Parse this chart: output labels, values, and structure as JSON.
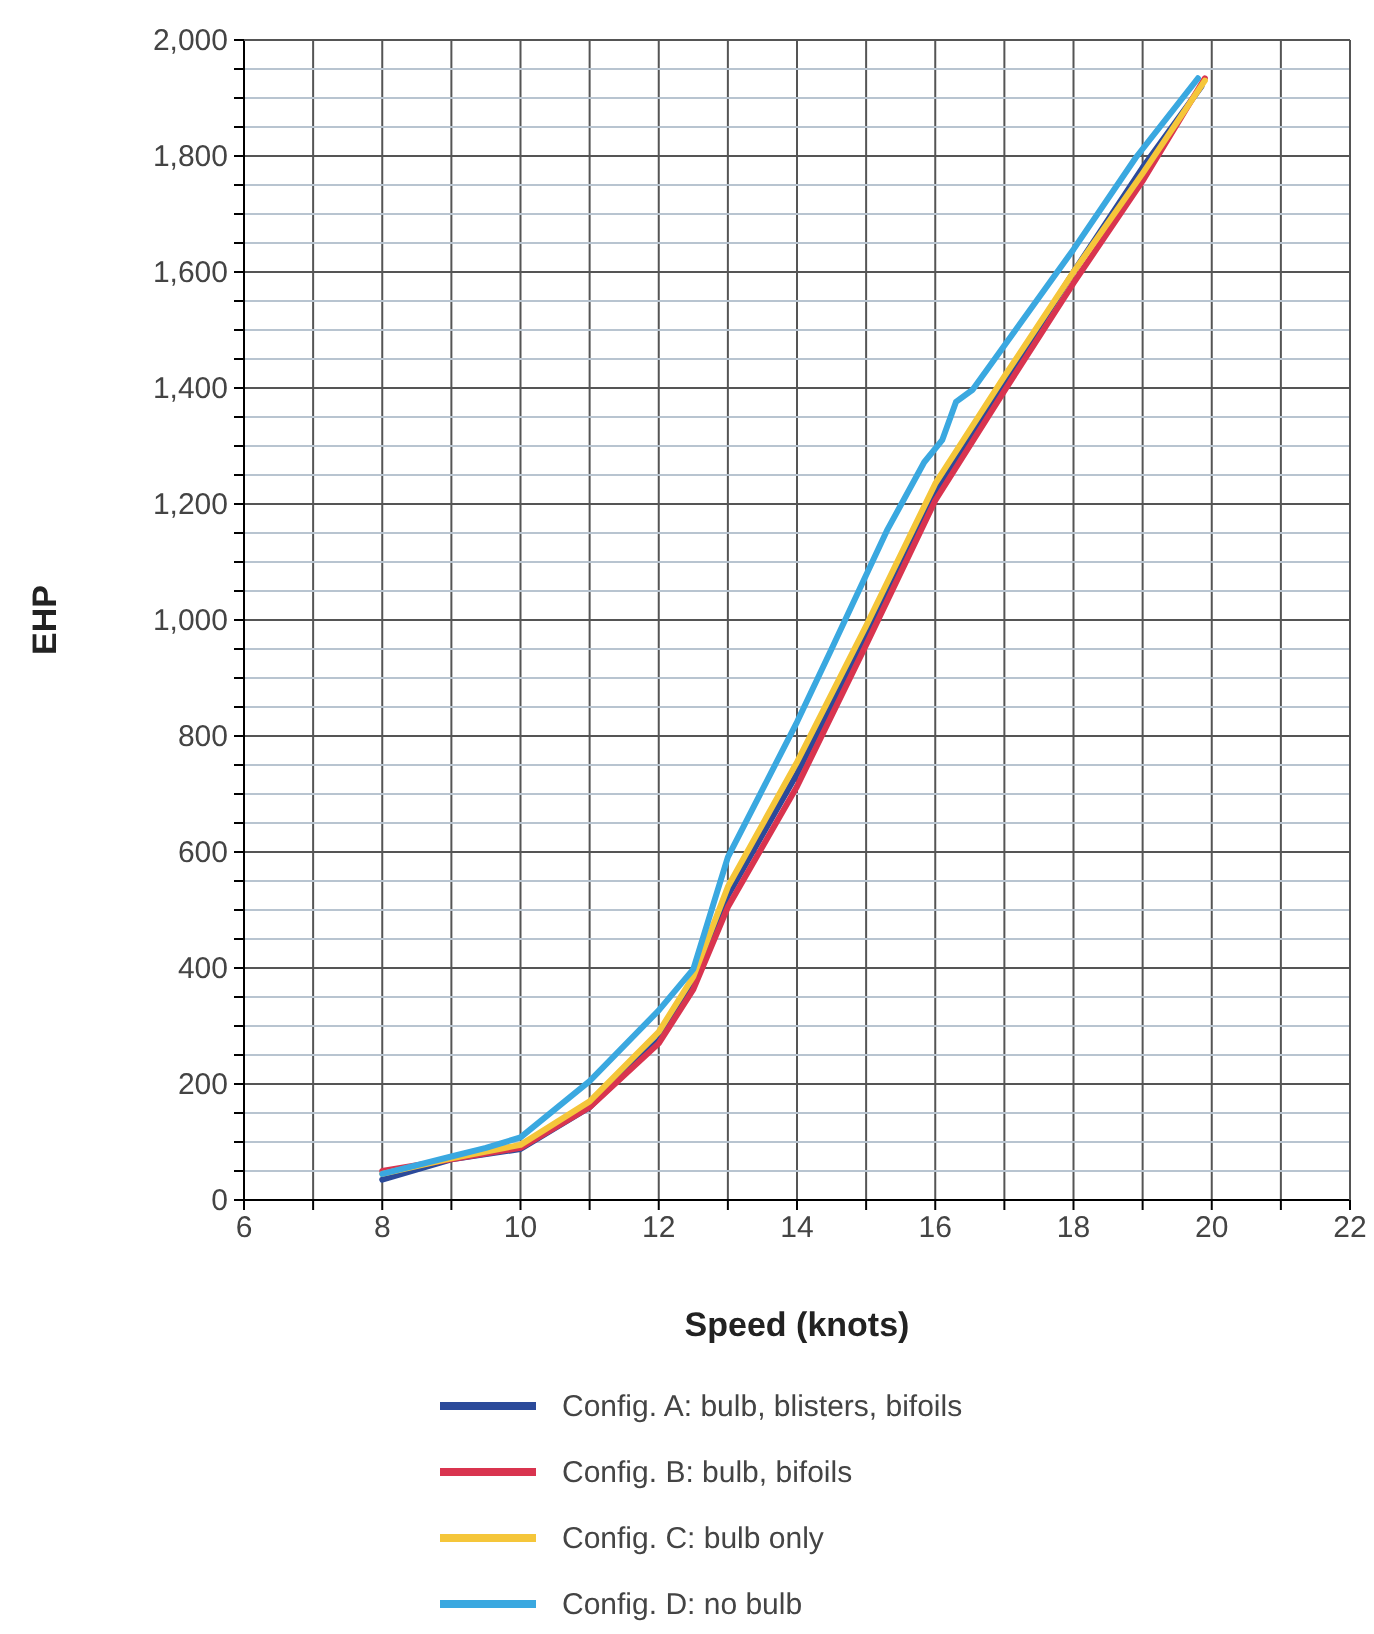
{
  "chart_data": {
    "type": "line",
    "xlabel": "Speed (knots)",
    "ylabel": "EHP",
    "xlim": [
      6,
      22
    ],
    "ylim": [
      0,
      2000
    ],
    "xticks": [
      6,
      {
        "value": 7,
        "label": null
      },
      8,
      {
        "value": 9,
        "label": null
      },
      10,
      {
        "value": 11,
        "label": null
      },
      12,
      {
        "value": 13,
        "label": null
      },
      14,
      {
        "value": 15,
        "label": null
      },
      16,
      {
        "value": 17,
        "label": null
      },
      18,
      {
        "value": 19,
        "label": null
      },
      20,
      {
        "value": 21,
        "label": null
      },
      22
    ],
    "yticks": [
      {
        "value": 0,
        "label": "0"
      },
      {
        "value": 50,
        "label": null
      },
      {
        "value": 100,
        "label": null
      },
      {
        "value": 150,
        "label": null
      },
      {
        "value": 200,
        "label": "200"
      },
      {
        "value": 250,
        "label": null
      },
      {
        "value": 300,
        "label": null
      },
      {
        "value": 350,
        "label": null
      },
      {
        "value": 400,
        "label": "400"
      },
      {
        "value": 450,
        "label": null
      },
      {
        "value": 500,
        "label": null
      },
      {
        "value": 550,
        "label": null
      },
      {
        "value": 600,
        "label": "600"
      },
      {
        "value": 650,
        "label": null
      },
      {
        "value": 700,
        "label": null
      },
      {
        "value": 750,
        "label": null
      },
      {
        "value": 800,
        "label": "800"
      },
      {
        "value": 850,
        "label": null
      },
      {
        "value": 900,
        "label": null
      },
      {
        "value": 950,
        "label": null
      },
      {
        "value": 1000,
        "label": "1,000"
      },
      {
        "value": 1050,
        "label": null
      },
      {
        "value": 1100,
        "label": null
      },
      {
        "value": 1150,
        "label": null
      },
      {
        "value": 1200,
        "label": "1,200"
      },
      {
        "value": 1250,
        "label": null
      },
      {
        "value": 1300,
        "label": null
      },
      {
        "value": 1350,
        "label": null
      },
      {
        "value": 1400,
        "label": "1,400"
      },
      {
        "value": 1450,
        "label": null
      },
      {
        "value": 1500,
        "label": null
      },
      {
        "value": 1550,
        "label": null
      },
      {
        "value": 1600,
        "label": "1,600"
      },
      {
        "value": 1650,
        "label": null
      },
      {
        "value": 1700,
        "label": null
      },
      {
        "value": 1750,
        "label": null
      },
      {
        "value": 1800,
        "label": "1,800"
      },
      {
        "value": 1850,
        "label": null
      },
      {
        "value": 1900,
        "label": null
      },
      {
        "value": 1950,
        "label": null
      },
      {
        "value": 2000,
        "label": "2,000"
      }
    ],
    "grid": true,
    "legend": "bottom",
    "line_style": "solid",
    "marker": "none",
    "series": [
      {
        "name": "Config. A: bulb, blisters, bifoils",
        "color": "#2b4a9a",
        "x": [
          8,
          9,
          10,
          11,
          12,
          12.5,
          13,
          14,
          15,
          16,
          17,
          18,
          19,
          19.85
        ],
        "values": [
          35,
          70,
          88,
          160,
          275,
          370,
          525,
          735,
          975,
          1220,
          1410,
          1600,
          1780,
          1920
        ]
      },
      {
        "name": "Config. B: bulb, bifoils",
        "color": "#d9344f",
        "x": [
          8,
          9,
          10,
          11,
          12,
          12.5,
          13,
          14,
          15,
          16,
          17,
          18,
          19,
          19.9
        ],
        "values": [
          50,
          70,
          90,
          160,
          270,
          363,
          505,
          713,
          957,
          1206,
          1395,
          1581,
          1757,
          1934
        ]
      },
      {
        "name": "Config. C: bulb only",
        "color": "#f5c63a",
        "x": [
          8,
          9,
          10,
          11,
          12,
          12.5,
          13,
          14,
          15,
          16,
          17,
          18,
          19,
          19.9
        ],
        "values": [
          45,
          72,
          95,
          170,
          290,
          385,
          540,
          755,
          990,
          1235,
          1420,
          1600,
          1770,
          1930
        ]
      },
      {
        "name": "Config. D: no bulb",
        "color": "#3aa8e0",
        "x": [
          8,
          9,
          9.5,
          10,
          11,
          12,
          12.5,
          13,
          14,
          14.5,
          15.3,
          15.84,
          16.1,
          16.3,
          16.54,
          18,
          18.9,
          19.8
        ],
        "values": [
          45,
          75,
          90,
          108,
          205,
          327,
          398,
          591,
          824,
          950,
          1154,
          1272,
          1310,
          1376,
          1397,
          1639,
          1797,
          1934
        ]
      }
    ]
  }
}
